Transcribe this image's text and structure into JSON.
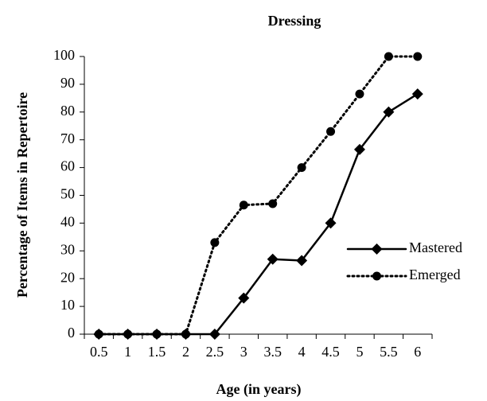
{
  "chart_data": {
    "type": "line",
    "title": "Dressing",
    "x_label": "Age (in years)",
    "y_label": "Percentage of Items in Repertoire",
    "categories": [
      "0.5",
      "1",
      "1.5",
      "2",
      "2.5",
      "3",
      "3.5",
      "4",
      "4.5",
      "5",
      "5.5",
      "6"
    ],
    "series": [
      {
        "name": "Mastered",
        "color": "#000000",
        "marker": "diamond",
        "linestyle": "solid",
        "values": [
          0,
          0,
          0,
          0,
          0,
          13,
          27,
          26.5,
          40,
          66.5,
          80,
          86.5
        ]
      },
      {
        "name": "Emerged",
        "color": "#000000",
        "marker": "circle",
        "linestyle": "dotted",
        "values": [
          0,
          0,
          0,
          0,
          33,
          46.5,
          47,
          60,
          73,
          86.5,
          100,
          100
        ]
      }
    ],
    "ylim": [
      0,
      100
    ],
    "yticks": [
      0,
      10,
      20,
      30,
      40,
      50,
      60,
      70,
      80,
      90,
      100
    ],
    "grid": false,
    "legend": "right"
  }
}
